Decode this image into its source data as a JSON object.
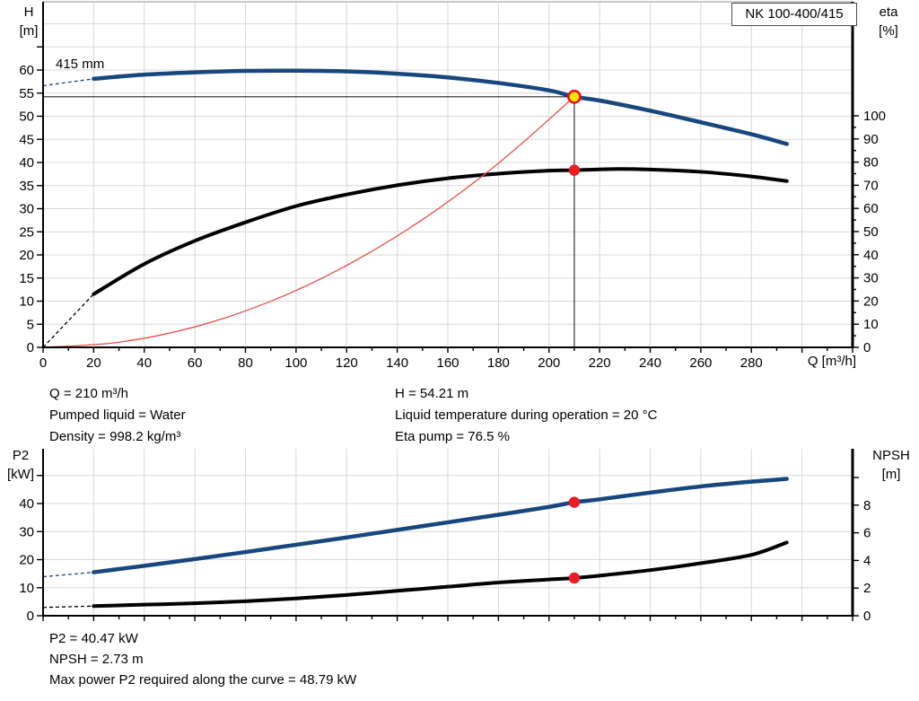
{
  "header": {
    "pump_name": "NK 100-400/415"
  },
  "colors": {
    "curve_blue": "#17477e",
    "curve_black": "#000000",
    "curve_red": "#e8504a",
    "dot_red": "#ed1c24",
    "duty_fill": "#ffe600",
    "duty_ring": "#e8112d",
    "grid": "#d8d8d8",
    "border": "#a8a8a8",
    "guide": "#222222",
    "axis": "#000000"
  },
  "top_chart_labels": {
    "y_left_1": "H",
    "y_left_2": "[m]",
    "y_right_1": "eta",
    "y_right_2": "[%]",
    "curve_label": "415 mm",
    "x_title": "Q [m³/h]"
  },
  "bottom_chart_labels": {
    "y_left_1": "P2",
    "y_left_2": "[kW]",
    "y_right_1": "NPSH",
    "y_right_2": "[m]"
  },
  "results_top": {
    "left": [
      "Q = 210 m³/h",
      "Pumped liquid = Water",
      "Density = 998.2 kg/m³"
    ],
    "right": [
      "H = 54.21 m",
      "Liquid temperature during operation = 20 °C",
      "Eta pump = 76.5 %"
    ]
  },
  "results_bottom": [
    "P2 = 40.47 kW",
    "NPSH = 2.73 m",
    "Max power P2 required along the curve = 48.79 kW"
  ],
  "chart_data": [
    {
      "id": "qh",
      "type": "line",
      "title": "NK 100-400/415",
      "x_axis": {
        "label": "Q [m³/h]",
        "min": 0,
        "max": 320,
        "tick_step": 10,
        "label_step": 20,
        "label_max": 280,
        "grid_step": 20,
        "grid_max": 300
      },
      "y_left": {
        "label": "H [m]",
        "min": 0,
        "tick_step": 5,
        "tick_max": 65,
        "label_step": 5,
        "label_max": 60,
        "grid_step": 5
      },
      "y_right": {
        "label": "eta [%]",
        "min": 0,
        "tick_step": 5,
        "long_step": 10,
        "tick_max": 100,
        "label_step": 10,
        "label_max": 100
      },
      "series": [
        {
          "name": "head-curve-415mm",
          "axis": "left",
          "color_key": "curve_blue",
          "width": 4.5,
          "dash_points": [
            [
              0,
              56.6
            ],
            [
              20,
              58.1
            ]
          ],
          "points": [
            [
              20,
              58.1
            ],
            [
              40,
              59.0
            ],
            [
              60,
              59.5
            ],
            [
              80,
              59.8
            ],
            [
              100,
              59.85
            ],
            [
              120,
              59.7
            ],
            [
              140,
              59.2
            ],
            [
              160,
              58.4
            ],
            [
              180,
              57.2
            ],
            [
              200,
              55.6
            ],
            [
              210,
              54.21
            ],
            [
              220,
              53.4
            ],
            [
              240,
              51.2
            ],
            [
              260,
              48.7
            ],
            [
              280,
              46.1
            ],
            [
              294,
              44.0
            ]
          ]
        },
        {
          "name": "efficiency-curve",
          "axis": "right",
          "color_key": "curve_black",
          "width": 4,
          "dash_points": [
            [
              0,
              0
            ],
            [
              20,
              23
            ]
          ],
          "points": [
            [
              20,
              23
            ],
            [
              40,
              36
            ],
            [
              60,
              46
            ],
            [
              80,
              54
            ],
            [
              100,
              61
            ],
            [
              120,
              66
            ],
            [
              140,
              70
            ],
            [
              160,
              73
            ],
            [
              180,
              75
            ],
            [
              200,
              76.3
            ],
            [
              210,
              76.5
            ],
            [
              225,
              77
            ],
            [
              240,
              76.8
            ],
            [
              260,
              75.8
            ],
            [
              280,
              73.8
            ],
            [
              294,
              71.8
            ]
          ]
        },
        {
          "name": "affinity-parabola",
          "axis": "left",
          "color_key": "curve_red",
          "width": 1.3,
          "points": [
            [
              0,
              0
            ],
            [
              30,
              1.11
            ],
            [
              60,
              4.43
            ],
            [
              90,
              9.96
            ],
            [
              120,
              17.72
            ],
            [
              150,
              27.66
            ],
            [
              180,
              39.83
            ],
            [
              210,
              54.21
            ]
          ]
        }
      ],
      "duty_point": {
        "q": 210,
        "value": 54.21,
        "axis": "left",
        "guides": true
      },
      "dots": [
        {
          "name": "eta-dot",
          "q": 210,
          "value": 76.5,
          "axis": "right"
        }
      ]
    },
    {
      "id": "p2",
      "type": "line",
      "x_axis": {
        "min": 0,
        "max": 320,
        "tick_step": 10,
        "label_step": 20,
        "grid_step": 20,
        "grid_max": 300
      },
      "y_left": {
        "label": "P2 [kW]",
        "min": 0,
        "tick_step": 10,
        "tick_max": 50,
        "label_step": 10,
        "label_max": 40,
        "grid_step": 10
      },
      "y_right": {
        "label": "NPSH [m]",
        "min": 0,
        "tick_step": 2,
        "long_step": 2,
        "tick_max": 10,
        "label_step": 2,
        "label_max": 8
      },
      "series": [
        {
          "name": "power-curve",
          "axis": "left",
          "color_key": "curve_blue",
          "width": 4.5,
          "dash_points": [
            [
              0,
              13.9
            ],
            [
              20,
              15.5
            ]
          ],
          "points": [
            [
              20,
              15.5
            ],
            [
              40,
              17.8
            ],
            [
              60,
              20.2
            ],
            [
              80,
              22.7
            ],
            [
              100,
              25.3
            ],
            [
              120,
              27.9
            ],
            [
              140,
              30.6
            ],
            [
              160,
              33.3
            ],
            [
              180,
              36.0
            ],
            [
              200,
              38.8
            ],
            [
              210,
              40.47
            ],
            [
              220,
              41.5
            ],
            [
              240,
              43.9
            ],
            [
              260,
              46.1
            ],
            [
              280,
              47.8
            ],
            [
              294,
              48.79
            ]
          ]
        },
        {
          "name": "npsh-curve",
          "axis": "right",
          "color_key": "curve_black",
          "width": 4,
          "dash_points": [
            [
              0,
              0.6
            ],
            [
              20,
              0.7
            ]
          ],
          "points": [
            [
              20,
              0.7
            ],
            [
              40,
              0.8
            ],
            [
              60,
              0.9
            ],
            [
              80,
              1.05
            ],
            [
              100,
              1.25
            ],
            [
              120,
              1.5
            ],
            [
              140,
              1.8
            ],
            [
              160,
              2.1
            ],
            [
              180,
              2.4
            ],
            [
              200,
              2.62
            ],
            [
              210,
              2.73
            ],
            [
              220,
              2.9
            ],
            [
              240,
              3.3
            ],
            [
              260,
              3.8
            ],
            [
              280,
              4.4
            ],
            [
              294,
              5.3
            ]
          ]
        }
      ],
      "dots": [
        {
          "name": "p2-dot",
          "q": 210,
          "value": 40.47,
          "axis": "left"
        },
        {
          "name": "npsh-dot",
          "q": 210,
          "value": 2.73,
          "axis": "right"
        }
      ]
    }
  ]
}
